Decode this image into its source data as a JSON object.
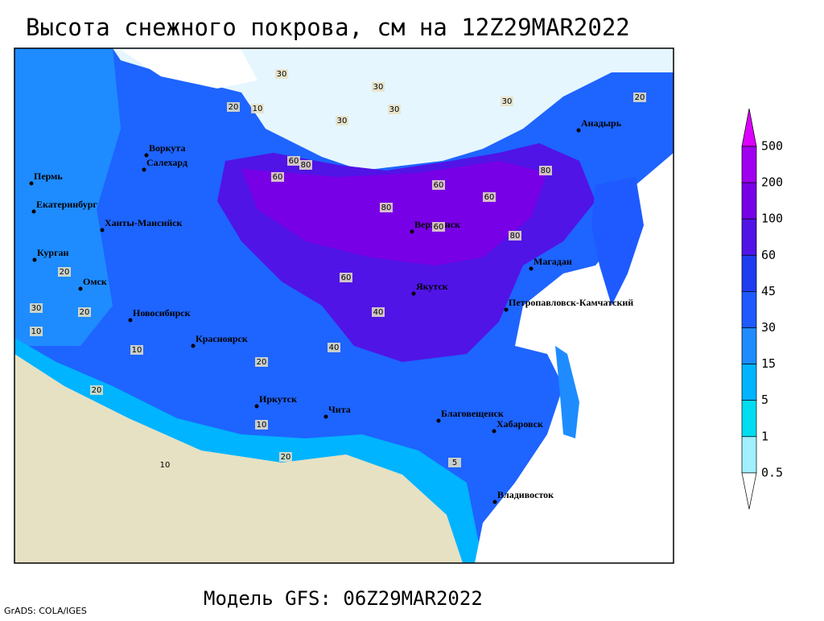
{
  "header": {
    "title": "Высота снежного покрова, см на 12Z29MAR2022"
  },
  "footer": {
    "model": "Модель GFS: 06Z29MAR2022",
    "credit": "GrADS: COLA/IGES"
  },
  "legend": {
    "labels": [
      500,
      200,
      100,
      60,
      45,
      30,
      15,
      5,
      1,
      0.5
    ],
    "colors": [
      "#dc00ff",
      "#a000f0",
      "#7800e6",
      "#5014e6",
      "#1e3cf0",
      "#1e5aff",
      "#1e8cff",
      "#00b4ff",
      "#00dcf0",
      "#a0f0ff",
      "#ffffff"
    ]
  },
  "cities": [
    "Воркута",
    "Салехард",
    "Пермь",
    "Екатеринбург",
    "Ханты-Мансийск",
    "Курган",
    "Омск",
    "Новосибирск",
    "Красноярск",
    "Иркутск",
    "Чита",
    "Верхоянск",
    "Якутск",
    "Магадан",
    "Анадырь",
    "Петропавловск-Камчатский",
    "Благовещенск",
    "Хабаровск",
    "Владивосток"
  ],
  "contour_labels": [
    "30",
    "30",
    "30",
    "20",
    "10",
    "30",
    "30",
    "20",
    "60",
    "60",
    "80",
    "80",
    "60",
    "80",
    "60",
    "60",
    "80",
    "60",
    "40",
    "40",
    "20",
    "20",
    "20",
    "10",
    "10",
    "20",
    "30",
    "10",
    "20",
    "10",
    "5"
  ]
}
